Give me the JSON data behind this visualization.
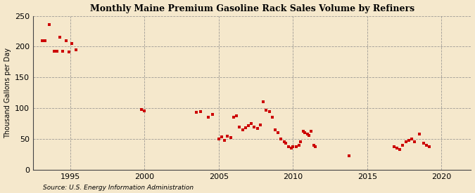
{
  "title": "Monthly Maine Premium Gasoline Rack Sales Volume by Refiners",
  "ylabel": "Thousand Gallons per Day",
  "source": "Source: U.S. Energy Information Administration",
  "background_color": "#f5e8cc",
  "dot_color": "#cc0000",
  "xlim": [
    1992.5,
    2022
  ],
  "ylim": [
    0,
    250
  ],
  "yticks": [
    0,
    50,
    100,
    150,
    200,
    250
  ],
  "xticks": [
    1995,
    2000,
    2005,
    2010,
    2015,
    2020
  ],
  "data_points": [
    [
      1993.1,
      209
    ],
    [
      1993.3,
      210
    ],
    [
      1993.6,
      236
    ],
    [
      1993.9,
      193
    ],
    [
      1994.1,
      193
    ],
    [
      1994.3,
      215
    ],
    [
      1994.5,
      193
    ],
    [
      1994.7,
      209
    ],
    [
      1994.9,
      191
    ],
    [
      1995.1,
      205
    ],
    [
      1995.4,
      195
    ],
    [
      1999.8,
      98
    ],
    [
      2000.0,
      96
    ],
    [
      2003.5,
      93
    ],
    [
      2003.8,
      95
    ],
    [
      2004.3,
      85
    ],
    [
      2004.6,
      90
    ],
    [
      2005.0,
      50
    ],
    [
      2005.2,
      54
    ],
    [
      2005.4,
      48
    ],
    [
      2005.6,
      55
    ],
    [
      2005.8,
      52
    ],
    [
      2006.0,
      85
    ],
    [
      2006.2,
      88
    ],
    [
      2006.4,
      70
    ],
    [
      2006.6,
      65
    ],
    [
      2006.8,
      68
    ],
    [
      2007.0,
      72
    ],
    [
      2007.2,
      75
    ],
    [
      2007.4,
      70
    ],
    [
      2007.6,
      67
    ],
    [
      2007.8,
      73
    ],
    [
      2008.0,
      110
    ],
    [
      2008.2,
      97
    ],
    [
      2008.4,
      95
    ],
    [
      2008.6,
      85
    ],
    [
      2008.8,
      65
    ],
    [
      2009.0,
      60
    ],
    [
      2009.2,
      50
    ],
    [
      2009.4,
      45
    ],
    [
      2009.5,
      43
    ],
    [
      2009.7,
      38
    ],
    [
      2009.9,
      35
    ],
    [
      2010.0,
      38
    ],
    [
      2010.2,
      38
    ],
    [
      2010.4,
      40
    ],
    [
      2010.5,
      45
    ],
    [
      2010.7,
      63
    ],
    [
      2010.8,
      60
    ],
    [
      2011.0,
      58
    ],
    [
      2011.1,
      56
    ],
    [
      2011.2,
      63
    ],
    [
      2011.4,
      40
    ],
    [
      2011.5,
      38
    ],
    [
      2013.8,
      23
    ],
    [
      2016.8,
      38
    ],
    [
      2017.0,
      35
    ],
    [
      2017.2,
      33
    ],
    [
      2017.4,
      40
    ],
    [
      2017.6,
      45
    ],
    [
      2017.8,
      48
    ],
    [
      2018.0,
      50
    ],
    [
      2018.2,
      45
    ],
    [
      2018.5,
      58
    ],
    [
      2018.8,
      43
    ],
    [
      2019.0,
      40
    ],
    [
      2019.2,
      38
    ]
  ]
}
